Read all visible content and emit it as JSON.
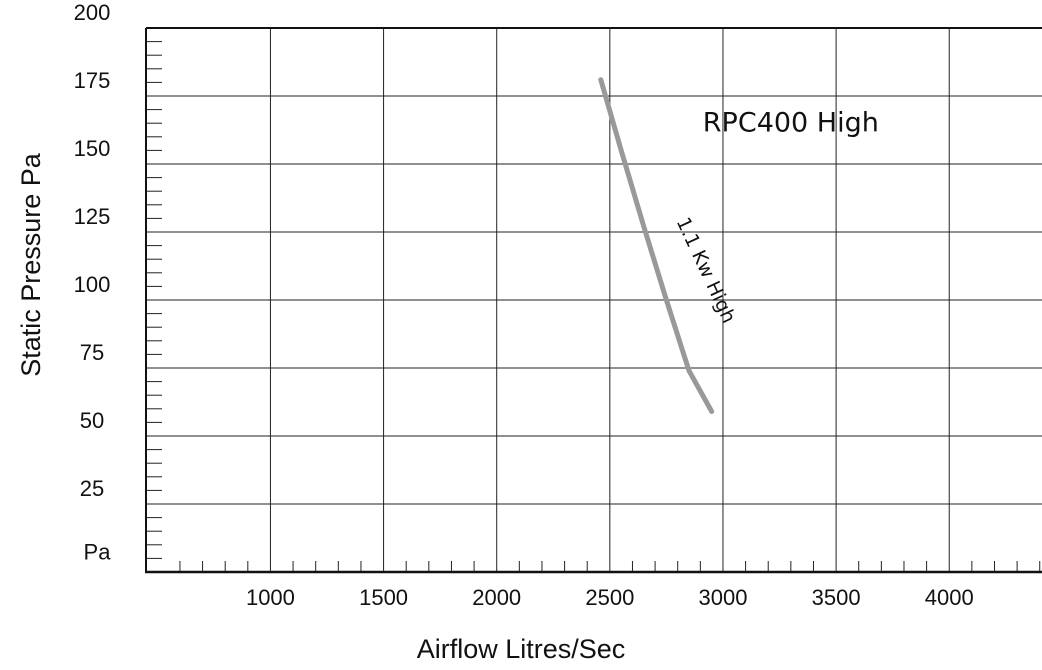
{
  "chart_data": {
    "type": "line",
    "title": "",
    "xlabel": "Airflow Litres/Sec",
    "ylabel": "Static Pressure Pa",
    "y_unit_label": "Pa",
    "xlim": [
      450,
      4410
    ],
    "ylim": [
      0,
      200
    ],
    "x_ticks": [
      1000,
      1500,
      2000,
      2500,
      3000,
      3500,
      4000
    ],
    "y_ticks": [
      25,
      50,
      75,
      100,
      125,
      150,
      175,
      200
    ],
    "x_minor_step": 100,
    "y_minor_step": 5,
    "grid": true,
    "annotations": [
      {
        "text": "RPC400 High",
        "x": 3300,
        "y": 162
      },
      {
        "text": "1.1  Kw High",
        "x": 2900,
        "y": 110
      }
    ],
    "series": [
      {
        "name": "1.1  Kw High",
        "color": "#999999",
        "x": [
          2460,
          2550,
          2650,
          2750,
          2850,
          2950
        ],
        "y": [
          181,
          155,
          127,
          100,
          74,
          59
        ]
      }
    ]
  }
}
